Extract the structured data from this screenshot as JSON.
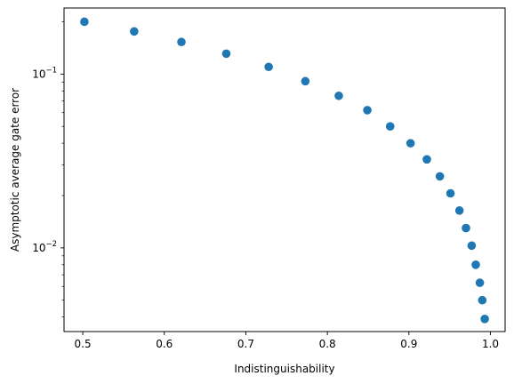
{
  "chart_data": {
    "type": "scatter",
    "title": "",
    "xlabel": "Indistinguishability",
    "ylabel": "Asymptotic average gate error",
    "xlim": [
      0.477,
      1.018
    ],
    "ylim": [
      0.0033,
      0.24
    ],
    "yscale": "log",
    "grid": false,
    "marker_color": "#1f77b4",
    "x_ticks": [
      {
        "value": 0.5,
        "label": "0.5"
      },
      {
        "value": 0.6,
        "label": "0.6"
      },
      {
        "value": 0.7,
        "label": "0.7"
      },
      {
        "value": 0.8,
        "label": "0.8"
      },
      {
        "value": 0.9,
        "label": "0.9"
      },
      {
        "value": 1.0,
        "label": "1.0"
      }
    ],
    "y_major_ticks": [
      {
        "value": 0.01,
        "base": "10",
        "exp": "−2"
      },
      {
        "value": 0.1,
        "base": "10",
        "exp": "−1"
      }
    ],
    "y_minor_ticks": [
      0.004,
      0.005,
      0.006,
      0.007,
      0.008,
      0.009,
      0.02,
      0.03,
      0.04,
      0.05,
      0.06,
      0.07,
      0.08,
      0.09,
      0.2
    ],
    "series": [
      {
        "x": [
          0.502,
          0.563,
          0.621,
          0.676,
          0.728,
          0.773,
          0.814,
          0.849,
          0.877,
          0.902,
          0.922,
          0.938,
          0.951,
          0.962,
          0.97,
          0.977,
          0.982,
          0.987,
          0.99,
          0.993
        ],
        "y": [
          0.2,
          0.176,
          0.153,
          0.131,
          0.11,
          0.091,
          0.075,
          0.062,
          0.05,
          0.04,
          0.0323,
          0.0258,
          0.0206,
          0.0164,
          0.013,
          0.0103,
          0.008,
          0.0063,
          0.005,
          0.0039
        ]
      }
    ]
  }
}
